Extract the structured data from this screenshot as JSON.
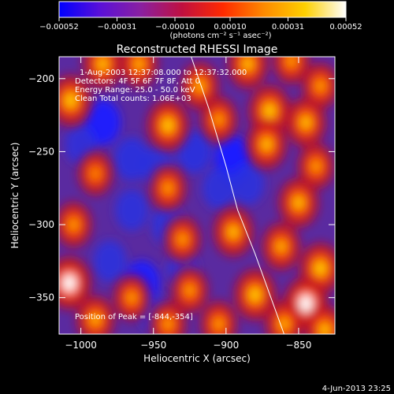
{
  "chart_data": {
    "type": "heatmap",
    "title": "Reconstructed RHESSI Image",
    "xlabel": "Heliocentric X (arcsec)",
    "ylabel": "Heliocentric Y (arcsec)",
    "xlim": [
      -1015,
      -825
    ],
    "ylim": [
      -375,
      -185
    ],
    "x_ticks": [
      -1000,
      -950,
      -900,
      -850
    ],
    "x_tick_labels": [
      "−1000",
      "−950",
      "−900",
      "−850"
    ],
    "y_ticks": [
      -200,
      -250,
      -300,
      -350
    ],
    "y_tick_labels": [
      "−200",
      "−250",
      "−300",
      "−350"
    ],
    "colorbar": {
      "min": -0.00052,
      "max": 0.00052,
      "ticks": [
        -0.00052,
        -0.00031,
        -0.0001,
        0.0001,
        0.00031,
        0.00052
      ],
      "tick_labels": [
        "−0.00052",
        "−0.00031",
        "−0.00010",
        "0.00010",
        "0.00031",
        "0.00052"
      ],
      "unit_label": "(photons cm⁻² s⁻¹ asec⁻²)",
      "colors": [
        "#0000ff",
        "#5a10d8",
        "#8a20a0",
        "#c01040",
        "#ff2a00",
        "#ff8a00",
        "#ffd000",
        "#ffffff"
      ]
    },
    "annotations": [
      "1-Aug-2003 12:37:08.000 to 12:37:32.000",
      "Detectors: 4F 5F 6F 7F 8F, Att 0",
      "Energy Range: 25.0 - 50.0 keV",
      "Clean     Total counts: 1.06E+03"
    ],
    "peak_label": "Position of Peak = [-844,-354]",
    "peak": [
      -844,
      -354
    ],
    "limb_curve": [
      [
        -924,
        -185
      ],
      [
        -912,
        -220
      ],
      [
        -900,
        -260
      ],
      [
        -892,
        -290
      ],
      [
        -880,
        -320
      ],
      [
        -860,
        -375
      ]
    ],
    "bright_sources": [
      [
        -985,
        -190,
        0.8
      ],
      [
        -960,
        -190,
        0.7
      ],
      [
        -918,
        -205,
        0.7
      ],
      [
        -885,
        -190,
        0.8
      ],
      [
        -855,
        -188,
        0.6
      ],
      [
        -835,
        -205,
        0.6
      ],
      [
        -1007,
        -215,
        0.9
      ],
      [
        -940,
        -232,
        0.9
      ],
      [
        -905,
        -228,
        0.6
      ],
      [
        -870,
        -222,
        0.9
      ],
      [
        -845,
        -230,
        0.8
      ],
      [
        -990,
        -265,
        0.5
      ],
      [
        -940,
        -275,
        0.6
      ],
      [
        -872,
        -245,
        0.8
      ],
      [
        -850,
        -285,
        0.8
      ],
      [
        -838,
        -260,
        0.6
      ],
      [
        -1005,
        -300,
        0.6
      ],
      [
        -930,
        -310,
        0.6
      ],
      [
        -895,
        -305,
        0.8
      ],
      [
        -862,
        -315,
        0.7
      ],
      [
        -835,
        -330,
        0.9
      ],
      [
        -1008,
        -340,
        1.0
      ],
      [
        -965,
        -350,
        0.6
      ],
      [
        -925,
        -345,
        0.6
      ],
      [
        -880,
        -348,
        0.9
      ],
      [
        -845,
        -354,
        1.0
      ],
      [
        -990,
        -365,
        0.7
      ],
      [
        -940,
        -368,
        0.6
      ],
      [
        -905,
        -368,
        0.6
      ],
      [
        -860,
        -368,
        0.7
      ],
      [
        -832,
        -372,
        0.8
      ]
    ],
    "dim_sources": [
      [
        -985,
        -230,
        0.9
      ],
      [
        -965,
        -255,
        0.8
      ],
      [
        -947,
        -260,
        0.7
      ],
      [
        -922,
        -250,
        0.8
      ],
      [
        -895,
        -255,
        1.0
      ],
      [
        -965,
        -290,
        0.7
      ],
      [
        -940,
        -300,
        0.7
      ],
      [
        -905,
        -275,
        0.7
      ],
      [
        -885,
        -272,
        0.7
      ],
      [
        -980,
        -325,
        0.7
      ],
      [
        -958,
        -340,
        0.9
      ],
      [
        -930,
        -330,
        0.6
      ],
      [
        -950,
        -360,
        0.5
      ],
      [
        -1000,
        -245,
        0.6
      ]
    ]
  },
  "footer": {
    "date": "4-Jun-2013 23:25"
  }
}
